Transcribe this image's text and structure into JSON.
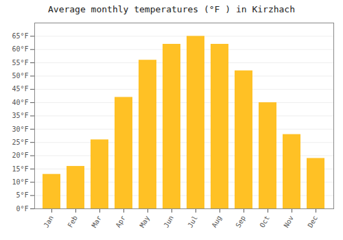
{
  "chart_data": {
    "type": "bar",
    "title": "Average monthly temperatures (°F ) in Kirzhach",
    "categories": [
      "Jan",
      "Feb",
      "Mar",
      "Apr",
      "May",
      "Jun",
      "Jul",
      "Aug",
      "Sep",
      "Oct",
      "Nov",
      "Dec"
    ],
    "values": [
      13,
      16,
      26,
      42,
      56,
      62,
      65,
      62,
      52,
      40,
      28,
      19
    ],
    "color": "#FFC125",
    "ylim": [
      0,
      70
    ],
    "yticks": [
      {
        "value": 0,
        "label": "0°F"
      },
      {
        "value": 5,
        "label": "5°F"
      },
      {
        "value": 10,
        "label": "10°F"
      },
      {
        "value": 15,
        "label": "15°F"
      },
      {
        "value": 20,
        "label": "20°F"
      },
      {
        "value": 25,
        "label": "25°F"
      },
      {
        "value": 30,
        "label": "30°F"
      },
      {
        "value": 35,
        "label": "35°F"
      },
      {
        "value": 40,
        "label": "40°F"
      },
      {
        "value": 45,
        "label": "45°F"
      },
      {
        "value": 50,
        "label": "50°F"
      },
      {
        "value": 55,
        "label": "55°F"
      },
      {
        "value": 60,
        "label": "60°F"
      },
      {
        "value": 65,
        "label": "65°F"
      }
    ],
    "grid": true
  }
}
